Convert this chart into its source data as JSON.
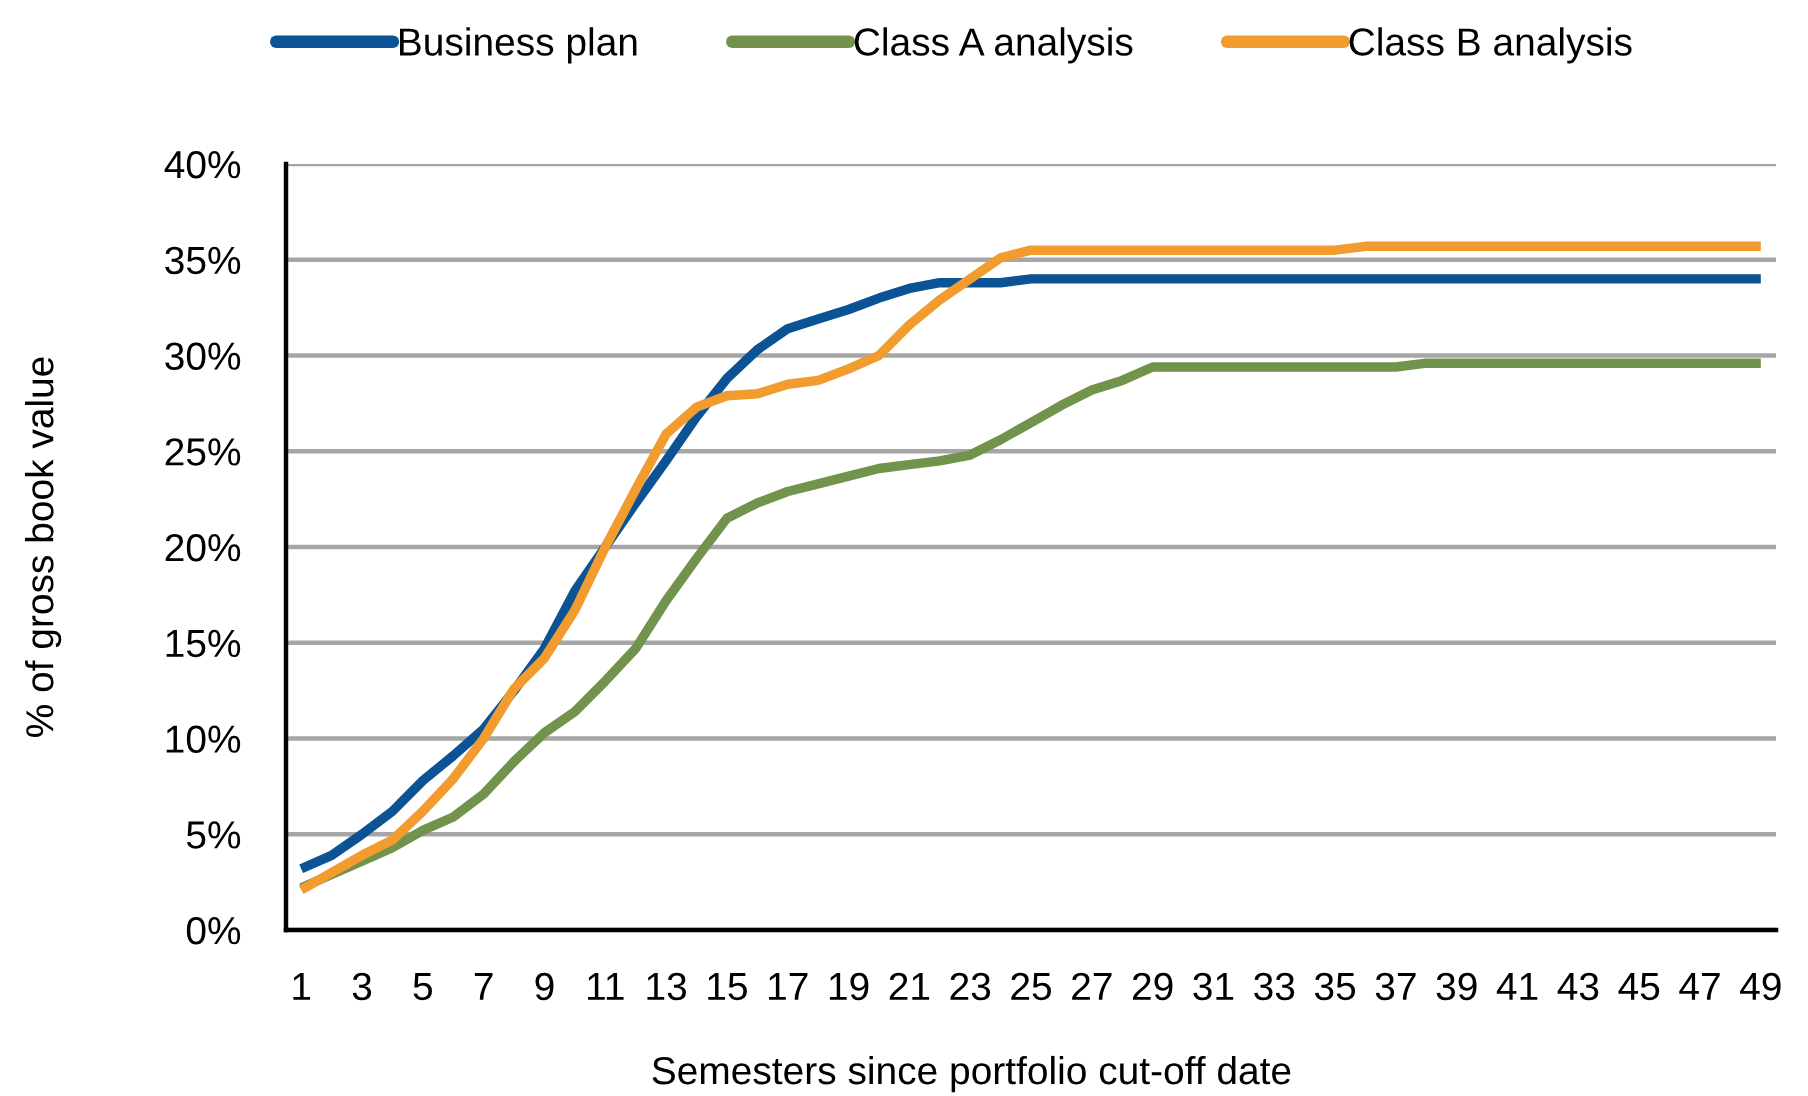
{
  "chart_data": {
    "type": "line",
    "xlabel": "Semesters since portfolio cut-off date",
    "ylabel": "% of gross book value",
    "categories": [
      "1",
      null,
      "3",
      null,
      "5",
      null,
      "7",
      null,
      "9",
      null,
      "11",
      null,
      "13",
      null,
      "15",
      null,
      "17",
      null,
      "19",
      null,
      "21",
      null,
      "23",
      null,
      "25",
      null,
      "27",
      null,
      "29",
      null,
      "31",
      null,
      "33",
      null,
      "35",
      null,
      "37",
      null,
      "39",
      null,
      "41",
      null,
      "43",
      null,
      "45",
      null,
      "47",
      null,
      "49"
    ],
    "series": [
      {
        "name": "Business plan",
        "color": "#0b5394",
        "values": [
          3.2,
          3.9,
          5.0,
          6.2,
          7.8,
          9.1,
          10.5,
          12.5,
          14.7,
          17.7,
          20.0,
          22.3,
          24.5,
          26.8,
          28.8,
          30.3,
          31.4,
          31.9,
          32.4,
          33.0,
          33.5,
          33.8,
          33.8,
          33.8,
          34.0,
          34.0,
          34.0,
          34.0,
          34.0,
          34.0,
          34.0,
          34.0,
          34.0,
          34.0,
          34.0,
          34.0,
          34.0,
          34.0,
          34.0,
          34.0,
          34.0,
          34.0,
          34.0,
          34.0,
          34.0,
          34.0,
          34.0,
          34.0,
          34.0
        ]
      },
      {
        "name": "Class A analysis",
        "color": "#72934c",
        "values": [
          2.2,
          2.9,
          3.6,
          4.3,
          5.2,
          5.9,
          7.1,
          8.8,
          10.3,
          11.4,
          13.0,
          14.7,
          17.2,
          19.4,
          21.5,
          22.3,
          22.9,
          23.3,
          23.7,
          24.1,
          24.3,
          24.5,
          24.8,
          25.6,
          26.5,
          27.4,
          28.2,
          28.7,
          29.4,
          29.4,
          29.4,
          29.4,
          29.4,
          29.4,
          29.4,
          29.4,
          29.4,
          29.6,
          29.6,
          29.6,
          29.6,
          29.6,
          29.6,
          29.6,
          29.6,
          29.6,
          29.6,
          29.6,
          29.6
        ]
      },
      {
        "name": "Class B analysis",
        "color": "#f29b2f",
        "values": [
          2.1,
          3.0,
          3.9,
          4.7,
          6.2,
          7.9,
          10.0,
          12.6,
          14.2,
          16.7,
          20.0,
          23.0,
          25.9,
          27.3,
          27.9,
          28.0,
          28.5,
          28.7,
          29.3,
          30.0,
          31.6,
          32.9,
          34.0,
          35.1,
          35.5,
          35.5,
          35.5,
          35.5,
          35.5,
          35.5,
          35.5,
          35.5,
          35.5,
          35.5,
          35.5,
          35.7,
          35.7,
          35.7,
          35.7,
          35.7,
          35.7,
          35.7,
          35.7,
          35.7,
          35.7,
          35.7,
          35.7,
          35.7,
          35.7
        ]
      }
    ],
    "ylim": [
      0,
      40
    ],
    "yticks": [
      {
        "value": 0,
        "label": "0%"
      },
      {
        "value": 5,
        "label": "5%"
      },
      {
        "value": 10,
        "label": "10%"
      },
      {
        "value": 15,
        "label": "15%"
      },
      {
        "value": 20,
        "label": "20%"
      },
      {
        "value": 25,
        "label": "25%"
      },
      {
        "value": 30,
        "label": "30%"
      },
      {
        "value": 35,
        "label": "35%"
      },
      {
        "value": 40,
        "label": "40%"
      }
    ],
    "grid": "y",
    "legend": "top",
    "line_style": "solid"
  }
}
